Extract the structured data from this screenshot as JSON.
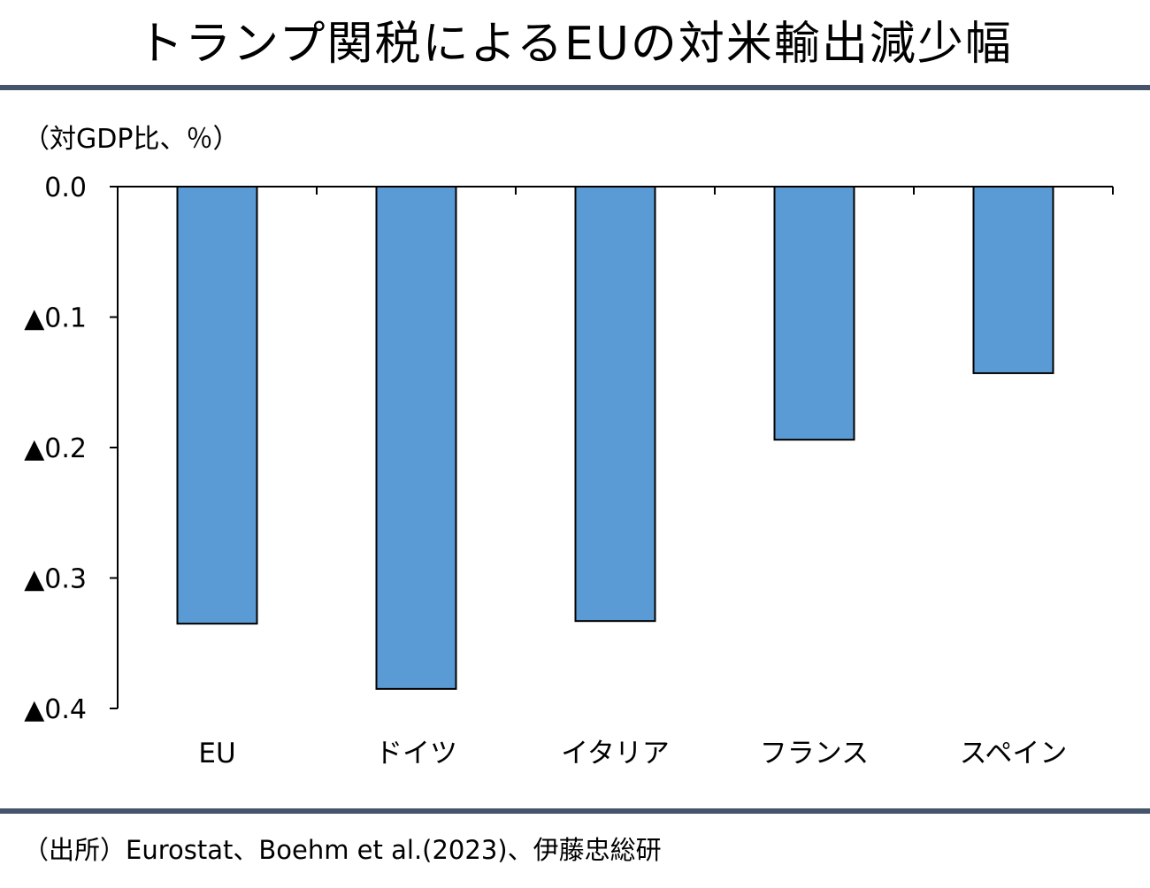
{
  "title": "トランプ関税によるEUの対米輸出減少幅",
  "unit_label": "（対GDP比、％）",
  "source": "（出所）Eurostat、Boehm et al.(2023)、伊藤忠総研",
  "colors": {
    "bar_fill": "#5b9bd5",
    "bar_stroke": "#000000",
    "rule": "#44546a",
    "axis": "#000000"
  },
  "chart_data": {
    "type": "bar",
    "title": "トランプ関税によるEUの対米輸出減少幅",
    "ylabel": "（対GDP比、％）",
    "xlabel": "",
    "categories": [
      "EU",
      "ドイツ",
      "イタリア",
      "フランス",
      "スペイン"
    ],
    "values": [
      -0.335,
      -0.385,
      -0.333,
      -0.194,
      -0.143
    ],
    "ylim": [
      -0.4,
      0.0
    ],
    "yticks": [
      0.0,
      -0.1,
      -0.2,
      -0.3,
      -0.4
    ],
    "ytick_labels": [
      "0.0",
      "▲0.1",
      "▲0.2",
      "▲0.3",
      "▲0.4"
    ],
    "grid": false,
    "legend": "none"
  }
}
